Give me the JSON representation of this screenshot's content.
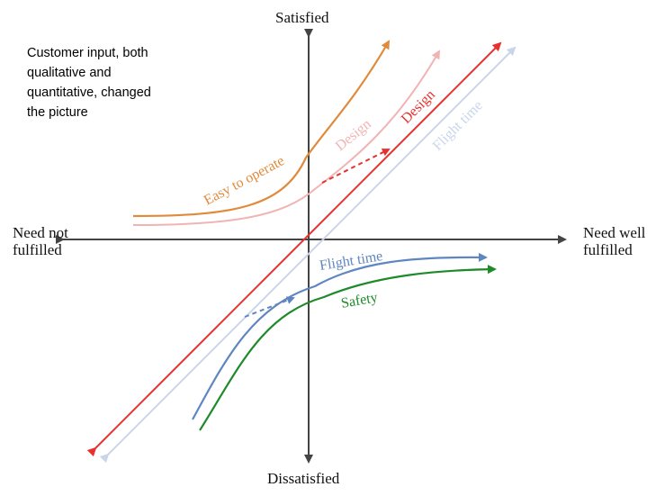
{
  "axes": {
    "top": "Satisfied",
    "bottom": "Dissatisfied",
    "left": [
      "Need not",
      "fulfilled"
    ],
    "right": [
      "Need well",
      "fulfilled"
    ]
  },
  "note": [
    "Customer input, both",
    "qualitative and",
    "quantitative, changed",
    "the picture"
  ],
  "curves": {
    "easy_to_operate": {
      "label": "Easy to operate",
      "color": "#e08a3c"
    },
    "design_faded": {
      "label": "Design",
      "color": "#f2b3b3"
    },
    "design": {
      "label": "Design",
      "color": "#e8312f"
    },
    "flight_time_faded": {
      "label": "Flight time",
      "color": "#c9d6ea"
    },
    "flight_time": {
      "label": "Flight time",
      "color": "#5f86c0"
    },
    "safety": {
      "label": "Safety",
      "color": "#1f8a2a"
    }
  },
  "axis_color": "#444444"
}
